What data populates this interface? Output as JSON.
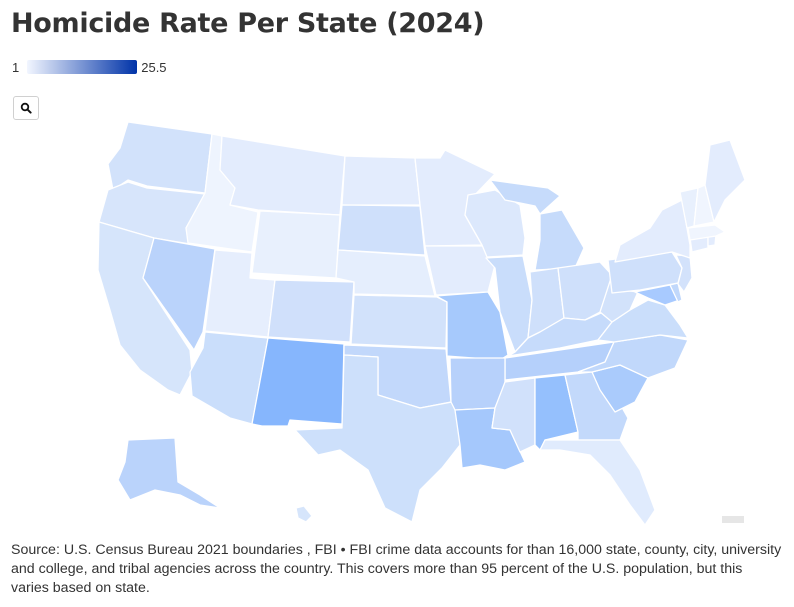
{
  "title": "Homicide Rate Per State (2024)",
  "legend": {
    "min_label": "1",
    "max_label": "25.5",
    "color_low": "#f2f6ff",
    "color_high": "#0033a8"
  },
  "zoom_icon": "search-icon",
  "source_text": "Source: U.S. Census Bureau 2021 boundaries , FBI • FBI crime data accounts for than 16,000 state, county, city, university and college, and tribal agencies across the country. This covers more than 95 percent of the U.S. population, but this varies based on state."
}
